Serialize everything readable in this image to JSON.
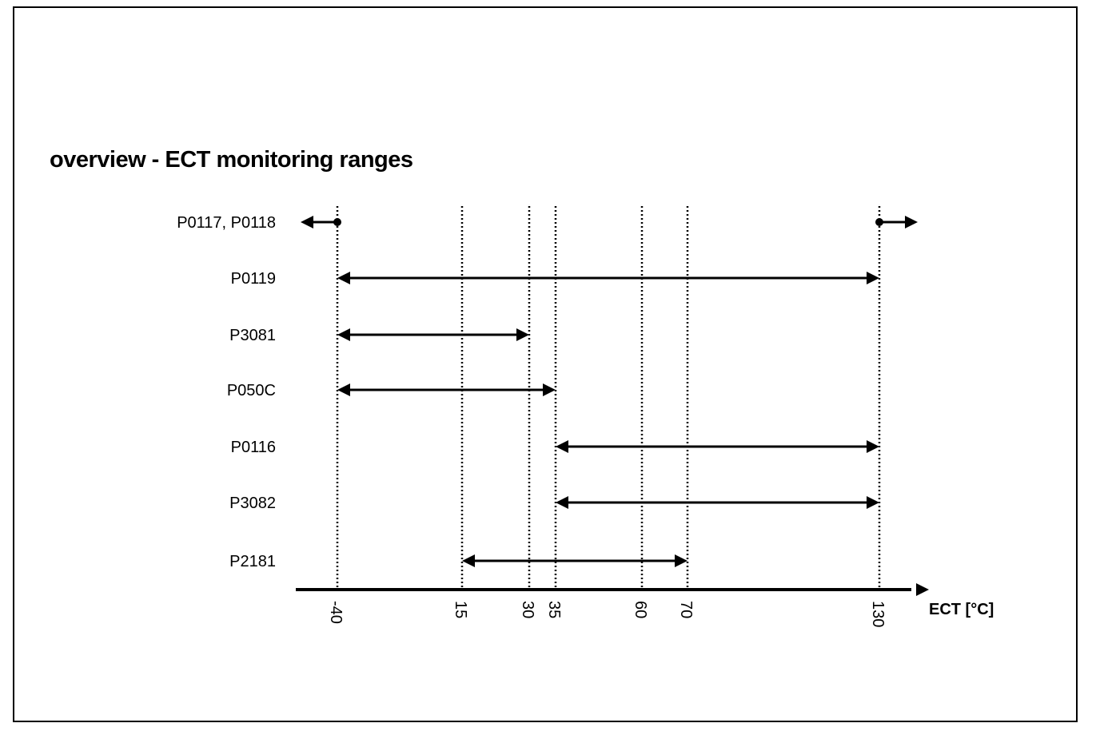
{
  "title": "overview - ECT monitoring ranges",
  "axis_label": "ECT [°C]",
  "ticks": [
    "-40",
    "15",
    "30",
    "35",
    "60",
    "70",
    "130"
  ],
  "rows": [
    {
      "label": "P0117, P0118",
      "type": "outside",
      "from": "-40",
      "to": "130"
    },
    {
      "label": "P0119",
      "type": "range",
      "from": "-40",
      "to": "130"
    },
    {
      "label": "P3081",
      "type": "range",
      "from": "-40",
      "to": "30"
    },
    {
      "label": "P050C",
      "type": "range",
      "from": "-40",
      "to": "35"
    },
    {
      "label": "P0116",
      "type": "range",
      "from": "35",
      "to": "130"
    },
    {
      "label": "P3082",
      "type": "range",
      "from": "35",
      "to": "130"
    },
    {
      "label": "P2181",
      "type": "range",
      "from": "15",
      "to": "70"
    }
  ]
}
